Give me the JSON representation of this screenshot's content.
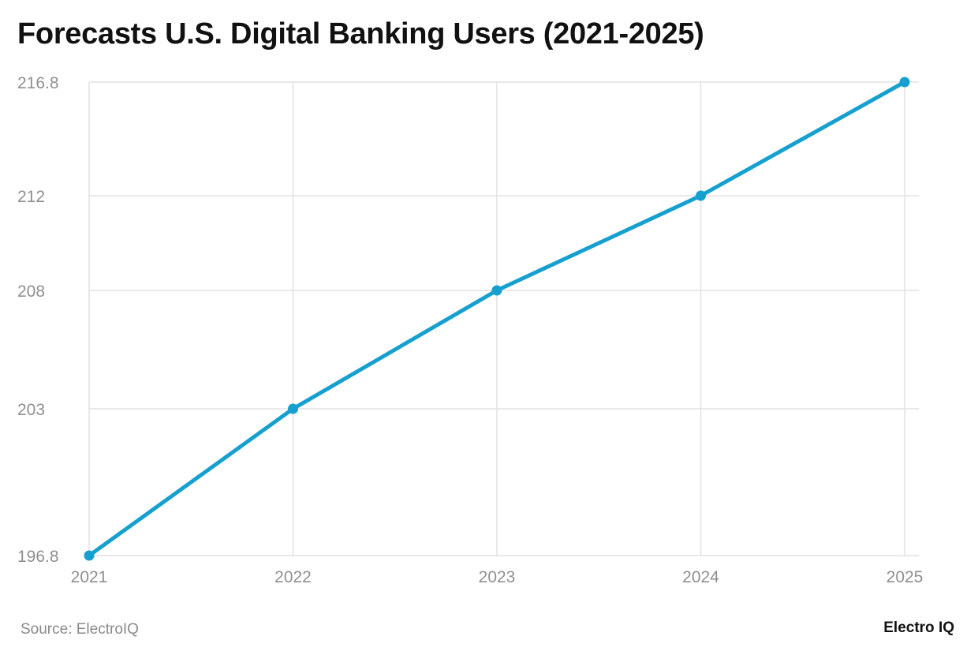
{
  "title": "Forecasts U.S. Digital Banking Users (2021-2025)",
  "source": "Source: ElectroIQ",
  "logo": "Electro IQ",
  "chart_data": {
    "type": "line",
    "title": "Forecasts U.S. Digital Banking Users (2021-2025)",
    "xlabel": "",
    "ylabel": "",
    "categories": [
      "2021",
      "2022",
      "2023",
      "2024",
      "2025"
    ],
    "series": [
      {
        "values": [
          196.8,
          203,
          208,
          212,
          216.8
        ],
        "color": "#16a0cf"
      }
    ],
    "yticks": [
      196.8,
      203,
      208,
      212,
      216.8
    ],
    "ylim": [
      196.8,
      216.8
    ],
    "grid": true,
    "legend": "none"
  }
}
